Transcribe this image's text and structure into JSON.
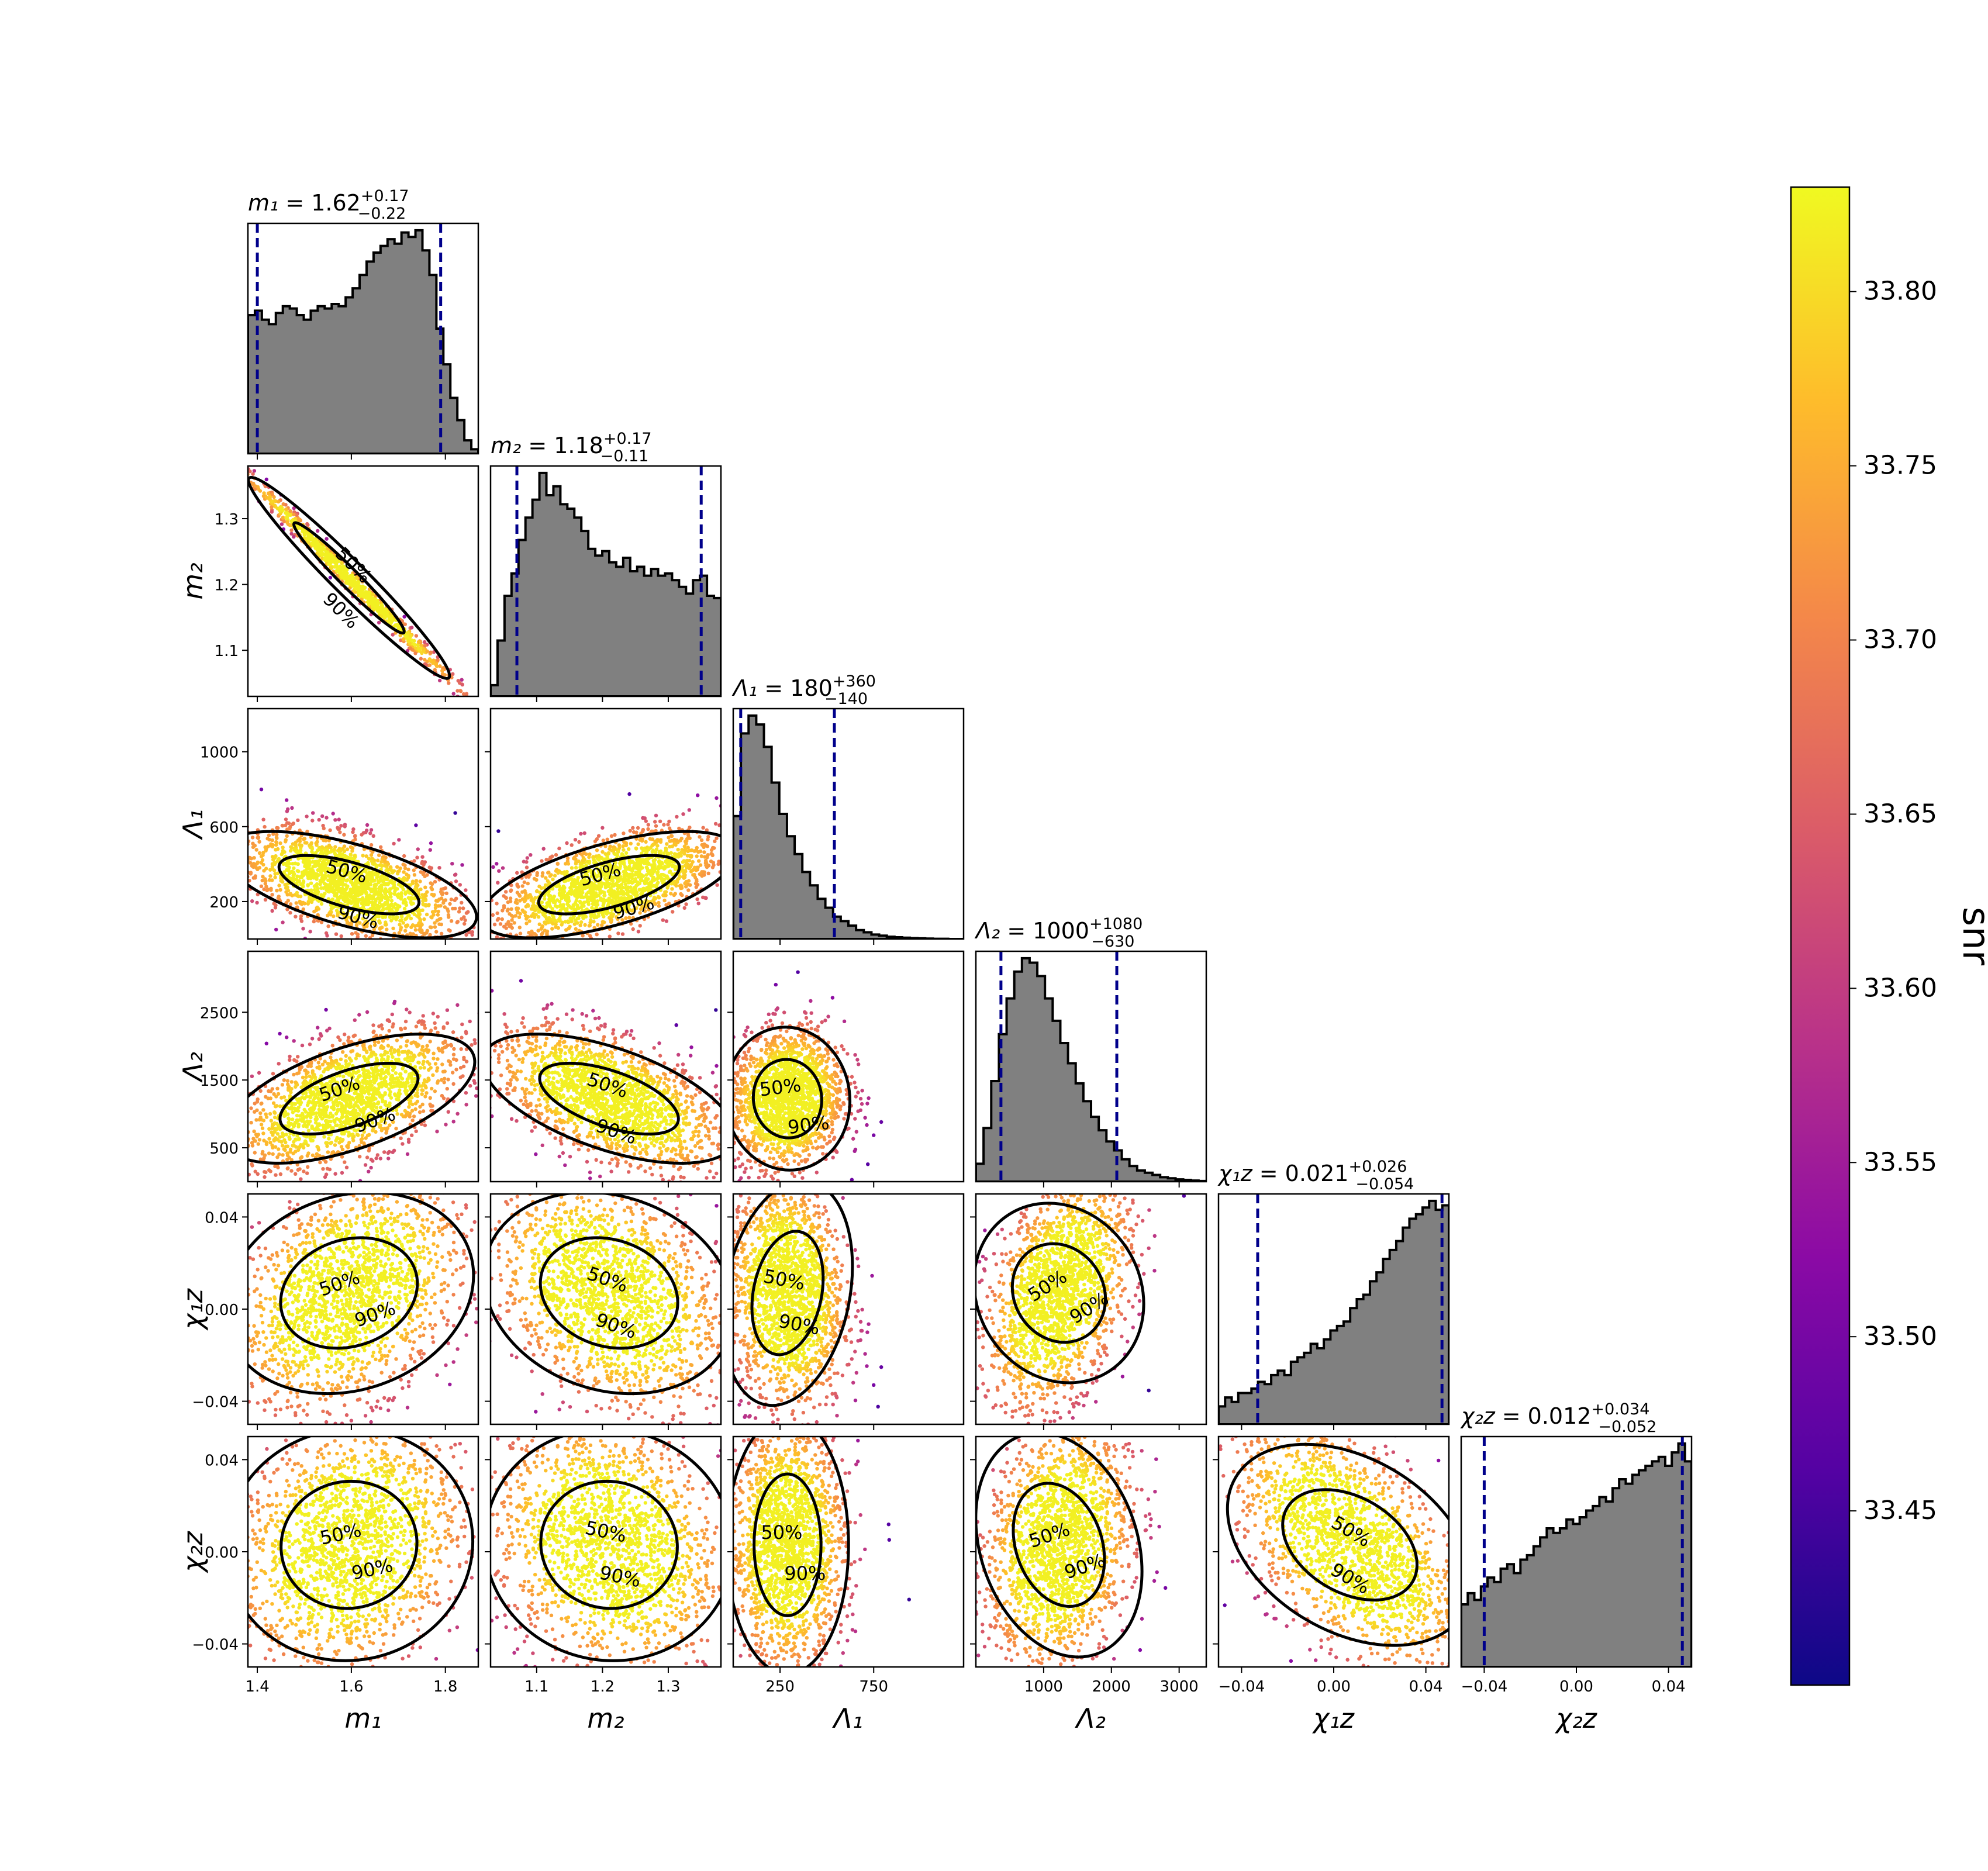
{
  "chart_data": {
    "type": "corner-plot",
    "parameters": [
      {
        "id": "m1",
        "axis_label": "m₁",
        "title_label": "m₁",
        "median": "1.62",
        "plus": "+0.17",
        "minus": "−0.22",
        "range": [
          1.38,
          1.87
        ],
        "ticks": [
          "1.4",
          "1.6",
          "1.8"
        ],
        "tick_values": [
          1.4,
          1.6,
          1.8
        ],
        "ci90": [
          1.4,
          1.79
        ]
      },
      {
        "id": "m2",
        "axis_label": "m₂",
        "title_label": "m₂",
        "median": "1.18",
        "plus": "+0.17",
        "minus": "−0.11",
        "range": [
          1.03,
          1.38
        ],
        "ticks": [
          "1.1",
          "1.2",
          "1.3"
        ],
        "tick_values": [
          1.1,
          1.2,
          1.3
        ],
        "ci90": [
          1.07,
          1.35
        ]
      },
      {
        "id": "L1",
        "axis_label": "Λ₁",
        "title_label": "Λ₁",
        "median": "180",
        "plus": "+360",
        "minus": "−140",
        "range": [
          0,
          1230
        ],
        "ticks": [
          "250",
          "750"
        ],
        "tick_values": [
          250,
          750
        ],
        "y_ticks": [
          "200",
          "600",
          "1000"
        ],
        "y_tick_values": [
          200,
          600,
          1000
        ],
        "ci90": [
          40,
          540
        ]
      },
      {
        "id": "L2",
        "axis_label": "Λ₂",
        "title_label": "Λ₂",
        "median": "1000",
        "plus": "+1080",
        "minus": "−630",
        "range": [
          0,
          3400
        ],
        "ticks": [
          "1000",
          "2000",
          "3000"
        ],
        "tick_values": [
          1000,
          2000,
          3000
        ],
        "y_ticks": [
          "500",
          "1500",
          "2500"
        ],
        "y_tick_values": [
          500,
          1500,
          2500
        ],
        "ci90": [
          370,
          2080
        ]
      },
      {
        "id": "c1z",
        "axis_label": "χ₁z",
        "title_label": "χ₁z",
        "median": "0.021",
        "plus": "+0.026",
        "minus": "−0.054",
        "range": [
          -0.05,
          0.05
        ],
        "ticks": [
          "−0.04",
          "0.00",
          "0.04"
        ],
        "tick_values": [
          -0.04,
          0.0,
          0.04
        ],
        "ci90": [
          -0.033,
          0.047
        ]
      },
      {
        "id": "c2z",
        "axis_label": "χ₂z",
        "title_label": "χ₂z",
        "median": "0.012",
        "plus": "+0.034",
        "minus": "−0.052",
        "range": [
          -0.05,
          0.05
        ],
        "ticks": [
          "−0.04",
          "0.00",
          "0.04"
        ],
        "tick_values": [
          -0.04,
          0.0,
          0.04
        ],
        "ci90": [
          -0.04,
          0.046
        ]
      }
    ],
    "histograms": {
      "m1": [
        0.62,
        0.64,
        0.6,
        0.58,
        0.63,
        0.66,
        0.65,
        0.62,
        0.6,
        0.64,
        0.66,
        0.65,
        0.67,
        0.66,
        0.7,
        0.74,
        0.8,
        0.86,
        0.9,
        0.93,
        0.96,
        0.94,
        0.99,
        0.97,
        1.0,
        0.91,
        0.8,
        0.56,
        0.4,
        0.25,
        0.15,
        0.06,
        0.02
      ],
      "m2": [
        0.05,
        0.25,
        0.45,
        0.55,
        0.7,
        0.8,
        0.88,
        1.0,
        0.9,
        0.94,
        0.86,
        0.84,
        0.8,
        0.74,
        0.66,
        0.63,
        0.65,
        0.6,
        0.58,
        0.62,
        0.56,
        0.58,
        0.54,
        0.57,
        0.54,
        0.55,
        0.52,
        0.49,
        0.46,
        0.52,
        0.54,
        0.45,
        0.44
      ],
      "L1": [
        0.55,
        0.92,
        1.0,
        0.96,
        0.86,
        0.7,
        0.56,
        0.46,
        0.38,
        0.3,
        0.24,
        0.18,
        0.14,
        0.1,
        0.08,
        0.06,
        0.04,
        0.03,
        0.02,
        0.015,
        0.01,
        0.008,
        0.006,
        0.004,
        0.003,
        0.002,
        0.001,
        0.001,
        0.0,
        0.0
      ],
      "L2": [
        0.08,
        0.24,
        0.45,
        0.66,
        0.82,
        0.94,
        1.0,
        0.98,
        0.92,
        0.82,
        0.72,
        0.62,
        0.53,
        0.44,
        0.36,
        0.29,
        0.23,
        0.18,
        0.14,
        0.1,
        0.07,
        0.05,
        0.04,
        0.03,
        0.02,
        0.015,
        0.01,
        0.008,
        0.005,
        0.003
      ],
      "c1z": [
        0.08,
        0.12,
        0.1,
        0.14,
        0.14,
        0.16,
        0.19,
        0.18,
        0.22,
        0.24,
        0.22,
        0.28,
        0.3,
        0.32,
        0.36,
        0.34,
        0.38,
        0.42,
        0.44,
        0.46,
        0.52,
        0.56,
        0.58,
        0.64,
        0.68,
        0.74,
        0.78,
        0.82,
        0.88,
        0.92,
        0.94,
        0.97,
        1.0,
        0.96,
        0.98
      ],
      "c2z": [
        0.28,
        0.33,
        0.3,
        0.36,
        0.4,
        0.38,
        0.44,
        0.46,
        0.42,
        0.48,
        0.5,
        0.54,
        0.58,
        0.62,
        0.6,
        0.62,
        0.66,
        0.64,
        0.67,
        0.7,
        0.72,
        0.76,
        0.74,
        0.8,
        0.84,
        0.82,
        0.86,
        0.88,
        0.9,
        0.92,
        0.94,
        0.9,
        0.96,
        1.0,
        0.92
      ]
    },
    "contour_labels": [
      "50%",
      "90%"
    ],
    "colorbar": {
      "label": "snr",
      "min": 33.4,
      "max": 33.83,
      "ticks": [
        "33.45",
        "33.50",
        "33.55",
        "33.60",
        "33.65",
        "33.70",
        "33.75",
        "33.80"
      ],
      "tick_values": [
        33.45,
        33.5,
        33.55,
        33.6,
        33.65,
        33.7,
        33.75,
        33.8
      ],
      "colormap": "plasma"
    },
    "colors": {
      "histogram_fill": "#808080",
      "credible_interval_line": "#00008b",
      "contour_line": "#000000",
      "scatter_core": "#fcd629",
      "scatter_edge": "#f79a3b"
    }
  }
}
